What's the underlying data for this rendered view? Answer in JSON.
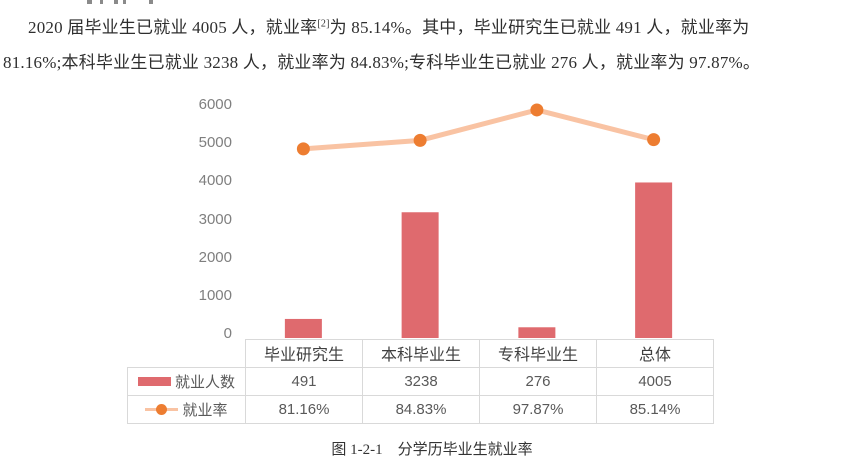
{
  "paragraph": {
    "line1_pre": "2020 届毕业生已就业 4005 人，就业率",
    "line1_sup": "[2]",
    "line1_post": "为 85.14%。其中，毕业研究生已就业 491 人，就业率为",
    "line2": "81.16%;本科毕业生已就业 3238 人，就业率为 84.83%;专科毕业生已就业 276 人，就业率为 97.87%。"
  },
  "chart_data": {
    "type": "bar",
    "subtype": "bar-line-combo",
    "categories": [
      "毕业研究生",
      "本科毕业生",
      "专科毕业生",
      "总体"
    ],
    "series": [
      {
        "name": "就业人数",
        "type": "bar",
        "values": [
          491,
          3238,
          276,
          4005
        ],
        "color": "#df6a6e"
      },
      {
        "name": "就业率",
        "type": "line",
        "values_pct": [
          81.16,
          84.83,
          97.87,
          85.14
        ],
        "color": "#f9c3a3",
        "marker_color": "#ed7d31",
        "note": "plotted against primary axis as percent of 6000"
      }
    ],
    "y_ticks": [
      0,
      1000,
      2000,
      3000,
      4000,
      5000,
      6000
    ],
    "ylim": [
      0,
      6000
    ],
    "grid": false,
    "legend_position": "table-left",
    "title": "",
    "xlabel": "",
    "ylabel": ""
  },
  "table": {
    "columns": [
      "毕业研究生",
      "本科毕业生",
      "专科毕业生",
      "总体"
    ],
    "row_labels": [
      "就业人数",
      "就业率"
    ],
    "rows": [
      [
        "491",
        "3238",
        "276",
        "4005"
      ],
      [
        "81.16%",
        "84.83%",
        "97.87%",
        "85.14%"
      ]
    ]
  },
  "caption": "图 1-2-1　分学历毕业生就业率",
  "colors": {
    "bar": "#df6a6e",
    "line": "#f9c3a3",
    "marker": "#ed7d31",
    "axis_text": "#7f7f7f",
    "table_border": "#d9d9d9",
    "body_text": "#2e2e2e"
  }
}
